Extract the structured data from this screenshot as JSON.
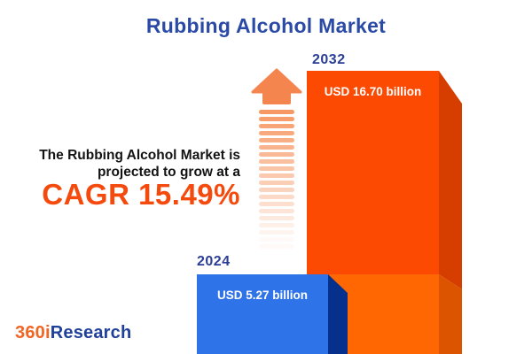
{
  "header": {
    "title": "Rubbing Alcohol Market"
  },
  "annotation": {
    "line1": "The Rubbing Alcohol Market is",
    "line2": "projected to grow at a",
    "cagr": "CAGR 15.49%"
  },
  "bars": {
    "b2024": {
      "year": "2024",
      "value_label": "USD 5.27 billion"
    },
    "b2032": {
      "year": "2032",
      "value_label": "USD 16.70 billion"
    }
  },
  "logo": {
    "part1": "360i",
    "part2": "Research"
  },
  "colors": {
    "title_blue": "#2B4AA6",
    "year_blue": "#2B3E96",
    "cagr_orange": "#F54A0D",
    "text_black": "#131313",
    "bar2032_front_upper": "#FC4A03",
    "bar2032_side_upper": "#D63E00",
    "bar2032_front_lower": "#FF6702",
    "bar2032_side_lower": "#DC5300",
    "bar2024_front": "#2E73E8",
    "bar2024_side": "#05308C",
    "arrow_head": "#F4854E",
    "arrow_stripe": "#F6945E",
    "logo_orange": "#F26522",
    "logo_blue": "#20409A",
    "value_text": "#FFFFFF"
  },
  "chart_data": {
    "type": "bar",
    "title": "Rubbing Alcohol Market",
    "categories": [
      "2024",
      "2032"
    ],
    "values": [
      5.27,
      16.7
    ],
    "value_labels": [
      "USD 5.27 billion",
      "USD 16.70 billion"
    ],
    "unit": "USD billion",
    "cagr_percent": 15.49,
    "orientation": "vertical",
    "legend": "none",
    "grid": false,
    "bar_colors": [
      "#2E73E8",
      "#FC4A03"
    ],
    "annotation_text": "The Rubbing Alcohol Market is projected to grow at a CAGR 15.49%"
  }
}
